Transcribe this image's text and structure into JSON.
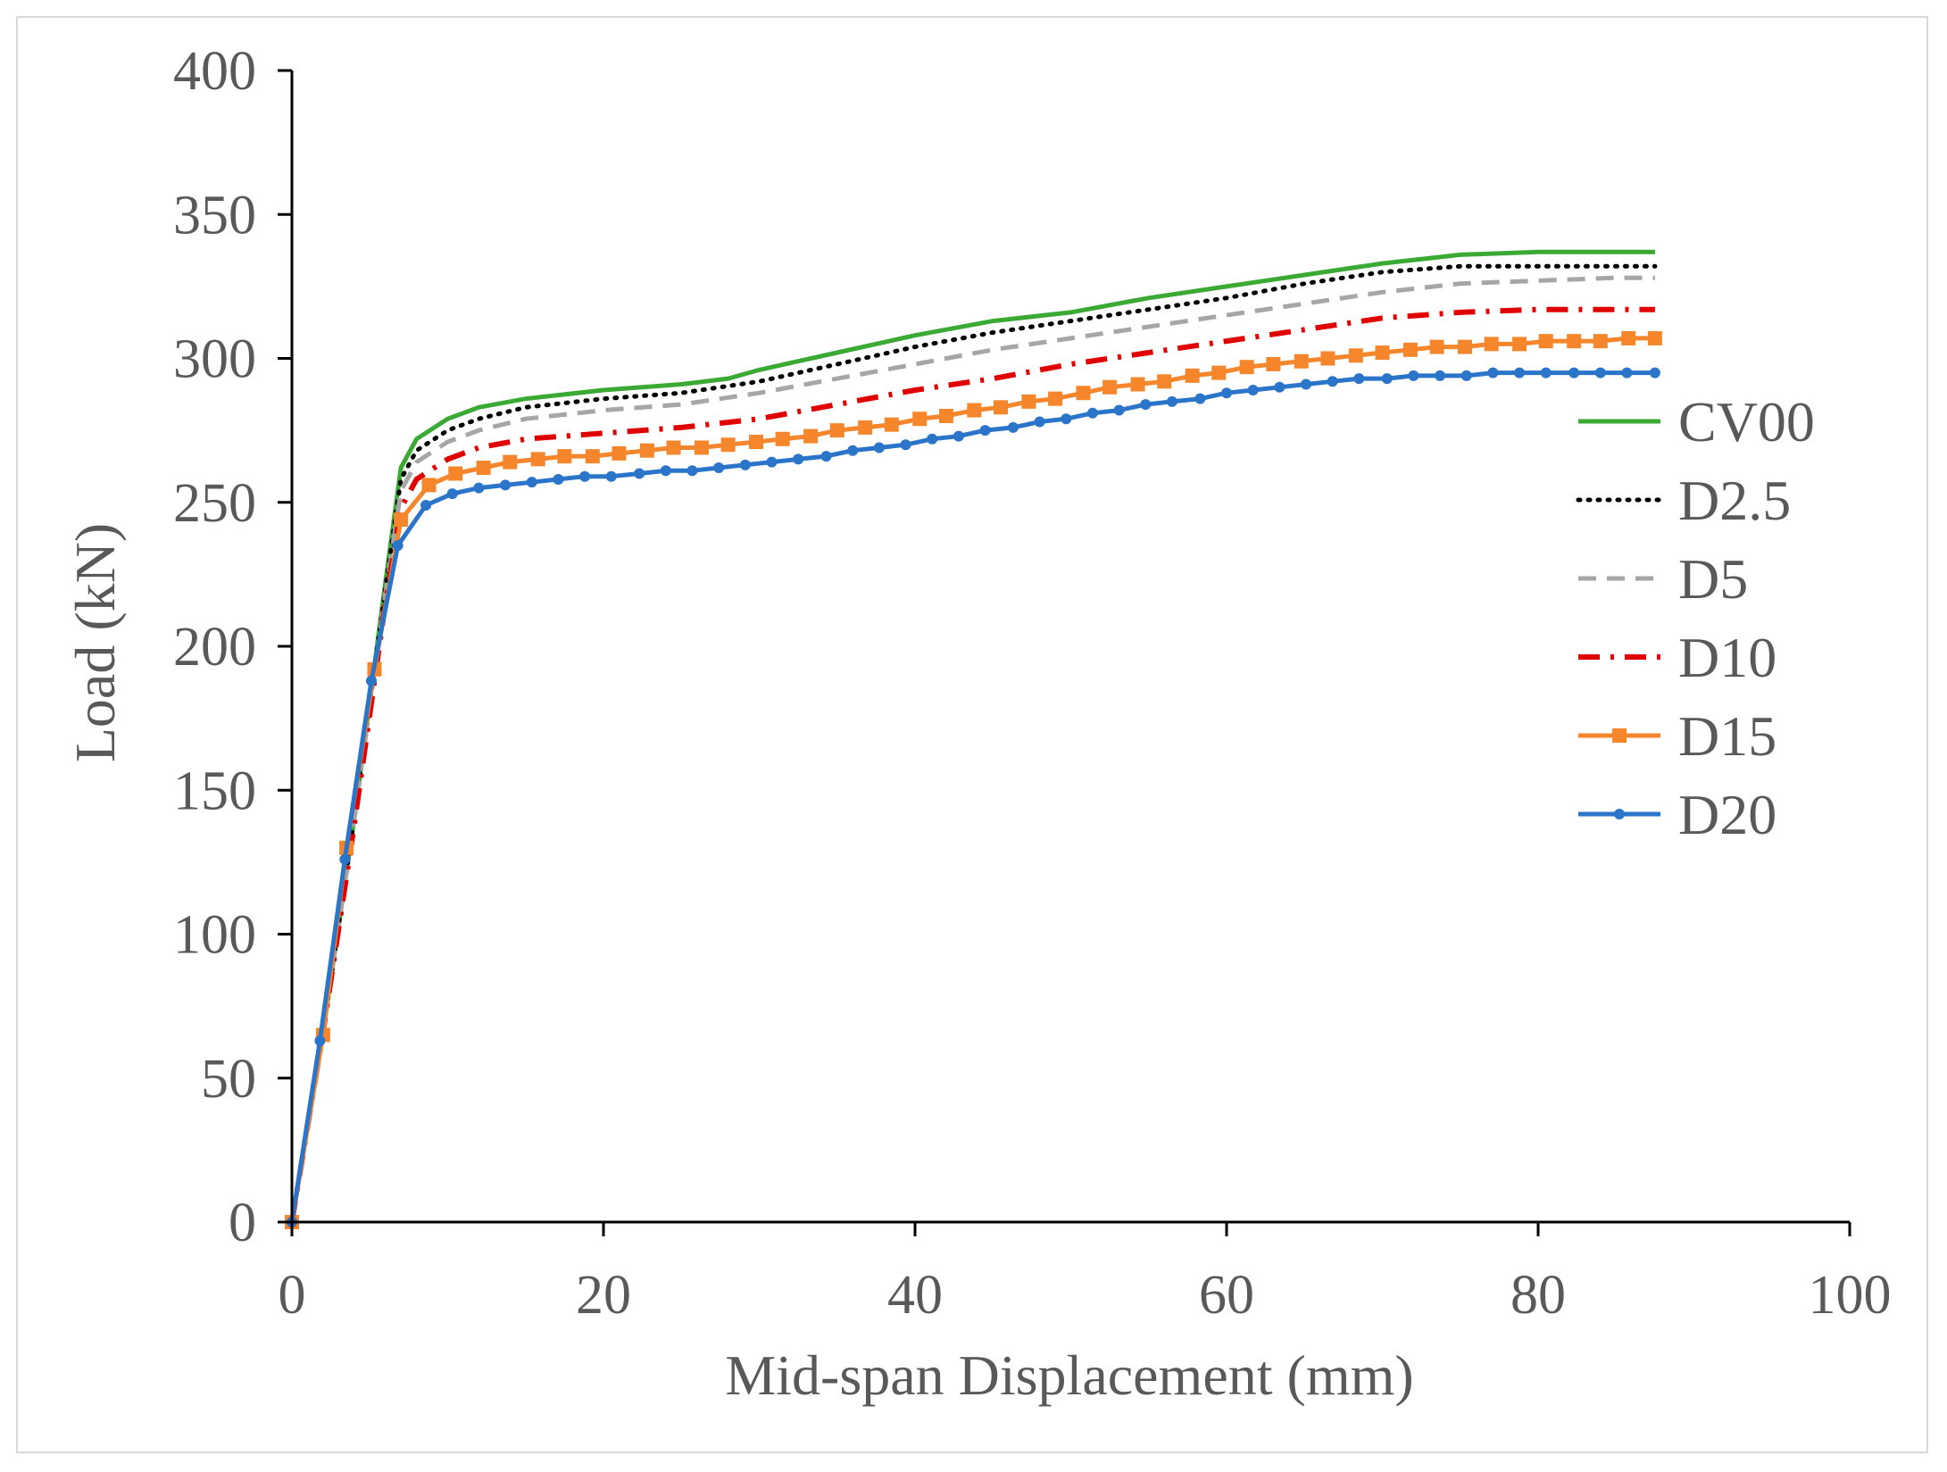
{
  "chart_data": {
    "type": "line",
    "title": "",
    "xlabel": "Mid-span Displacement (mm)",
    "ylabel": "Load (kN)",
    "xlim": [
      0,
      100
    ],
    "ylim": [
      0,
      400
    ],
    "xticks": [
      0,
      20,
      40,
      60,
      80,
      100
    ],
    "yticks": [
      0,
      50,
      100,
      150,
      200,
      250,
      300,
      350,
      400
    ],
    "grid": false,
    "legend_position": "right",
    "series": [
      {
        "name": "CV00",
        "color": "#3aaa35",
        "style": "solid",
        "marker": "none",
        "x": [
          0,
          2,
          4,
          6,
          7,
          8,
          10,
          12,
          15,
          20,
          25,
          28,
          30,
          35,
          40,
          45,
          50,
          55,
          60,
          65,
          70,
          75,
          80,
          85,
          87.5
        ],
        "y": [
          0,
          66,
          140,
          222,
          262,
          272,
          279,
          283,
          286,
          289,
          291,
          293,
          296,
          302,
          308,
          313,
          316,
          321,
          325,
          329,
          333,
          336,
          337,
          337,
          337
        ]
      },
      {
        "name": "D2.5",
        "color": "#000000",
        "style": "dotted",
        "marker": "none",
        "x": [
          0,
          2,
          4,
          6,
          7,
          8,
          10,
          12,
          15,
          20,
          25,
          30,
          35,
          40,
          45,
          50,
          55,
          60,
          65,
          70,
          75,
          80,
          85,
          87.5
        ],
        "y": [
          0,
          66,
          140,
          220,
          258,
          268,
          275,
          279,
          283,
          286,
          288,
          292,
          298,
          304,
          309,
          313,
          317,
          321,
          326,
          330,
          332,
          332,
          332,
          332
        ]
      },
      {
        "name": "D5",
        "color": "#a6a6a6",
        "style": "dashed",
        "marker": "none",
        "x": [
          0,
          2,
          4,
          6,
          7,
          8,
          10,
          12,
          15,
          20,
          25,
          30,
          35,
          40,
          45,
          50,
          55,
          60,
          65,
          70,
          75,
          80,
          85,
          87.5
        ],
        "y": [
          0,
          66,
          140,
          218,
          254,
          264,
          271,
          275,
          279,
          282,
          284,
          288,
          293,
          298,
          303,
          307,
          311,
          315,
          319,
          323,
          326,
          327,
          328,
          328
        ]
      },
      {
        "name": "D10",
        "color": "#e00000",
        "style": "dashdot",
        "marker": "none",
        "x": [
          0,
          2,
          4,
          6,
          7,
          8,
          10,
          12,
          15,
          20,
          25,
          30,
          35,
          40,
          45,
          50,
          55,
          60,
          65,
          70,
          75,
          80,
          85,
          87.5
        ],
        "y": [
          0,
          66,
          138,
          215,
          248,
          258,
          265,
          269,
          272,
          274,
          276,
          279,
          284,
          289,
          293,
          298,
          302,
          306,
          310,
          314,
          316,
          317,
          317,
          317
        ]
      },
      {
        "name": "D15",
        "color": "#f5862b",
        "style": "solid",
        "marker": "square",
        "x": [
          0,
          2,
          3.5,
          5.3,
          7,
          8.8,
          10.5,
          12.3,
          14,
          15.8,
          17.5,
          19.3,
          21,
          22.8,
          24.5,
          26.3,
          28,
          29.8,
          31.5,
          33.3,
          35,
          36.8,
          38.5,
          40.3,
          42,
          43.8,
          45.5,
          47.3,
          49,
          50.8,
          52.5,
          54.3,
          56,
          57.8,
          59.5,
          61.3,
          63,
          64.8,
          66.5,
          68.3,
          70,
          71.8,
          73.5,
          75.3,
          77,
          78.8,
          80.5,
          82.3,
          84,
          85.8,
          87.5
        ],
        "y": [
          0,
          65,
          130,
          192,
          244,
          256,
          260,
          262,
          264,
          265,
          266,
          266,
          267,
          268,
          269,
          269,
          270,
          271,
          272,
          273,
          275,
          276,
          277,
          279,
          280,
          282,
          283,
          285,
          286,
          288,
          290,
          291,
          292,
          294,
          295,
          297,
          298,
          299,
          300,
          301,
          302,
          303,
          304,
          304,
          305,
          305,
          306,
          306,
          306,
          307,
          307
        ]
      },
      {
        "name": "D20",
        "color": "#2a74c9",
        "style": "solid",
        "marker": "circle",
        "x": [
          0,
          1.8,
          3.4,
          5.1,
          6.8,
          8.6,
          10.3,
          12,
          13.7,
          15.4,
          17.1,
          18.8,
          20.5,
          22.3,
          24,
          25.7,
          27.4,
          29.1,
          30.8,
          32.5,
          34.3,
          36,
          37.7,
          39.4,
          41.1,
          42.8,
          44.5,
          46.3,
          48,
          49.7,
          51.4,
          53.1,
          54.8,
          56.5,
          58.3,
          60,
          61.7,
          63.4,
          65.1,
          66.8,
          68.5,
          70.3,
          72,
          73.7,
          75.4,
          77.1,
          78.8,
          80.5,
          82.3,
          84,
          85.7,
          87.5
        ],
        "y": [
          0,
          63,
          126,
          188,
          235,
          249,
          253,
          255,
          256,
          257,
          258,
          259,
          259,
          260,
          261,
          261,
          262,
          263,
          264,
          265,
          266,
          268,
          269,
          270,
          272,
          273,
          275,
          276,
          278,
          279,
          281,
          282,
          284,
          285,
          286,
          288,
          289,
          290,
          291,
          292,
          293,
          293,
          294,
          294,
          294,
          295,
          295,
          295,
          295,
          295,
          295,
          295
        ]
      }
    ]
  }
}
